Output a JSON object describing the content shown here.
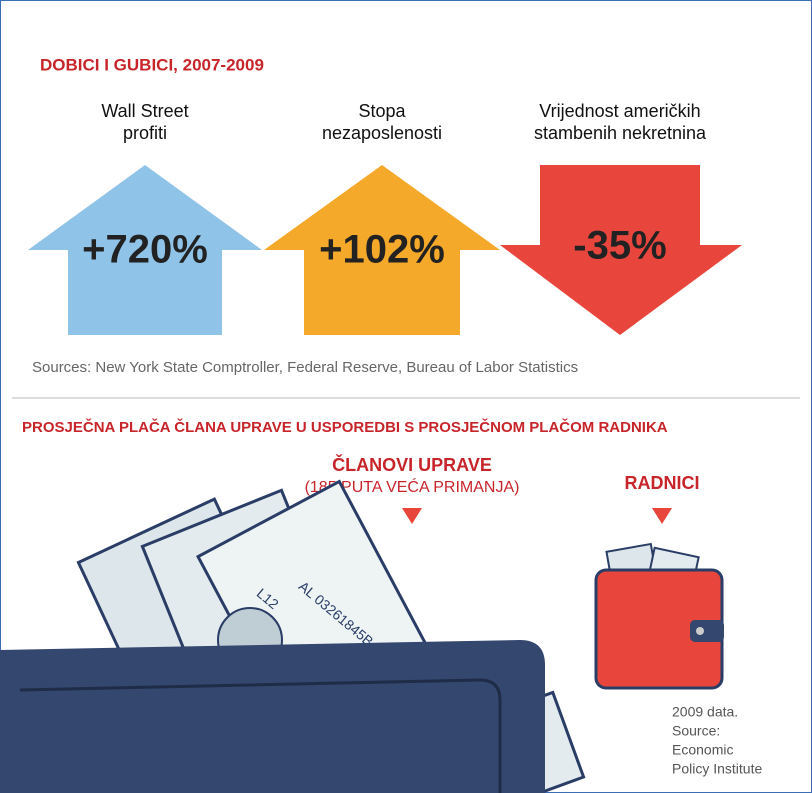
{
  "section1": {
    "title": "DOBICI I GUBICI, 2007-2009",
    "arrows": [
      {
        "label": [
          "Wall Street",
          "profiti"
        ],
        "value": "+720%"
      },
      {
        "label": [
          "Stopa",
          "nezaposlenosti"
        ],
        "value": "+102%"
      },
      {
        "label": [
          "Vrijednost američkih",
          "stambenih nekretnina"
        ],
        "value": "-35%"
      }
    ],
    "sources": "Sources: New York State Comptroller, Federal Reserve, Bureau of Labor Statistics"
  },
  "section2": {
    "title": "PROSJEČNA PLAČA ČLANA UPRAVE U USPOREDBI S PROSJEČNOM PLAČOM RADNIKA",
    "executives": {
      "label": "ČLANOVI UPRAVE",
      "sublabel": "(185 PUTA VEĆA PRIMANJA)"
    },
    "workers": {
      "label": "RADNICI"
    },
    "bill_serial": "AL 03261845B",
    "bill_code": "L12",
    "note": [
      "2009 data.",
      "Source:",
      "Economic",
      "Policy Institute"
    ]
  }
}
